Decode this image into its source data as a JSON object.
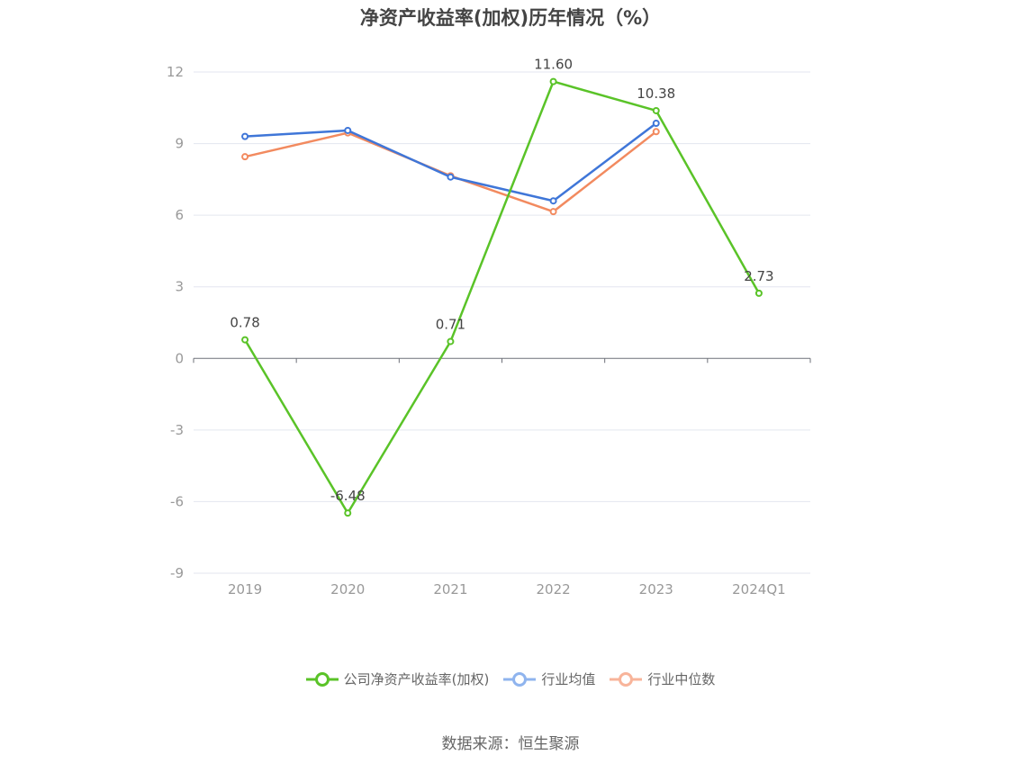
{
  "chart_data": {
    "type": "line",
    "title": "净资产收益率(加权)历年情况（%）",
    "categories": [
      "2019",
      "2020",
      "2021",
      "2022",
      "2023",
      "2024Q1"
    ],
    "ylim": [
      -9,
      12
    ],
    "yticks": [
      12,
      9,
      6,
      3,
      0,
      -3,
      -6,
      -9
    ],
    "grid": true,
    "legend_position": "bottom-center",
    "series": [
      {
        "name": "公司净资产收益率(加权)",
        "color": "#5ac328",
        "values": [
          0.78,
          -6.48,
          0.71,
          11.6,
          10.38,
          2.73
        ],
        "labels": [
          "0.78",
          "-6.48",
          "0.71",
          "11.60",
          "10.38",
          "2.73"
        ]
      },
      {
        "name": "行业均值",
        "color": "#3f76d8",
        "values": [
          9.3,
          9.55,
          7.6,
          6.6,
          9.85,
          null
        ]
      },
      {
        "name": "行业中位数",
        "color": "#f28a5f",
        "values": [
          8.45,
          9.45,
          7.65,
          6.15,
          9.5,
          null
        ]
      }
    ],
    "legend_colors": [
      "#5ac328",
      "#8fb4ee",
      "#f8b49a"
    ]
  },
  "source": "数据来源：恒生聚源"
}
